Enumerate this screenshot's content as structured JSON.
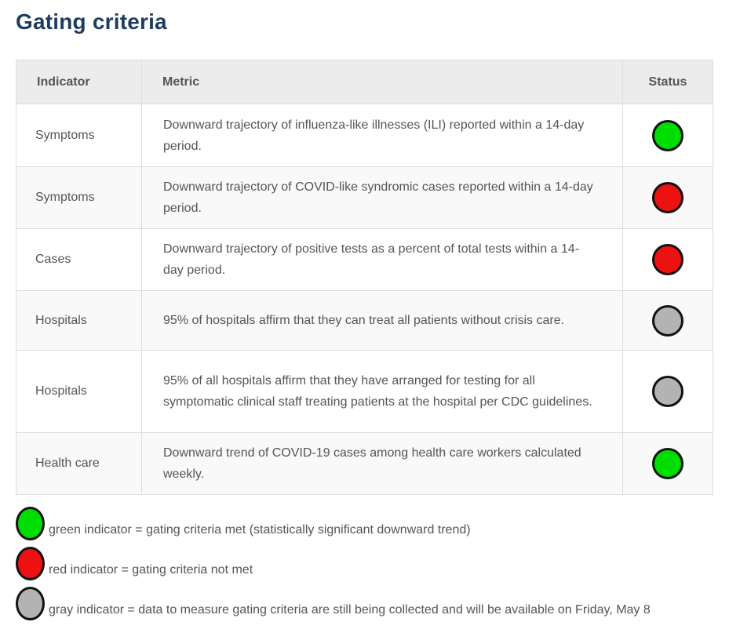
{
  "page": {
    "title": "Gating criteria"
  },
  "table": {
    "headers": [
      "Indicator",
      "Metric",
      "Status"
    ],
    "rows": [
      {
        "indicator": "Symptoms",
        "metric": "Downward trajectory of influenza-like illnesses (ILI) reported within a 14-day period.",
        "status": "green"
      },
      {
        "indicator": "Symptoms",
        "metric": "Downward trajectory of COVID-like syndromic cases reported within a 14-day period.",
        "status": "red"
      },
      {
        "indicator": "Cases",
        "metric": "Downward trajectory of positive tests as a percent of total tests within a 14-day period.",
        "status": "red"
      },
      {
        "indicator": "Hospitals",
        "metric": "95% of hospitals affirm that they can treat all patients without crisis care.",
        "status": "gray"
      },
      {
        "indicator": "Hospitals",
        "metric": "95% of all hospitals affirm that they have arranged for testing for all symptomatic clinical staff treating patients at the hospital per CDC guidelines.",
        "status": "gray"
      },
      {
        "indicator": "Health care",
        "metric": "Downward trend of COVID-19 cases among health care workers calculated weekly.",
        "status": "green"
      }
    ]
  },
  "legend": [
    {
      "color": "green",
      "text": "green indicator = gating criteria met (statistically significant downward trend)"
    },
    {
      "color": "red",
      "text": "red indicator = gating criteria not met"
    },
    {
      "color": "gray",
      "text": "gray indicator = data to measure gating criteria are still being collected and will be available on Friday, May 8"
    }
  ],
  "colors": {
    "green": "#00dd00",
    "red": "#ee1111",
    "gray": "#b3b3b3",
    "title": "#1d3c5e",
    "header_bg": "#ececec",
    "border": "#dddddd",
    "body_text": "#555555"
  }
}
